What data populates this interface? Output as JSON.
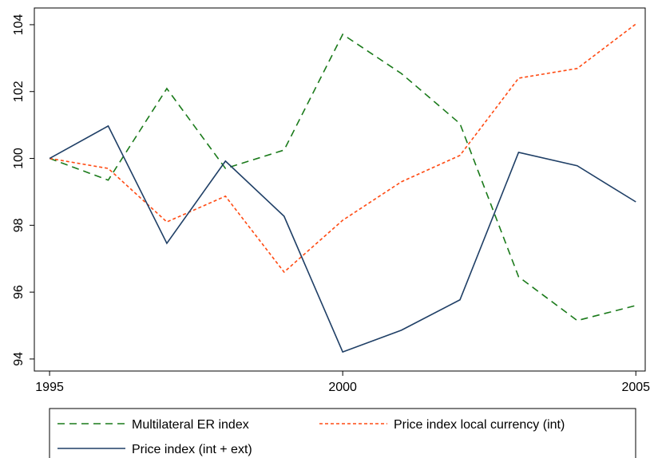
{
  "chart_data": {
    "type": "line",
    "x": [
      1995,
      1996,
      1997,
      1998,
      1999,
      2000,
      2001,
      2002,
      2003,
      2004,
      2005
    ],
    "series": [
      {
        "name": "Multilateral ER index",
        "color": "#1a7a1a",
        "line_style": "dash",
        "values": [
          100,
          99.35,
          102.09,
          99.7,
          100.25,
          103.71,
          102.54,
          101.04,
          96.46,
          95.15,
          95.6
        ]
      },
      {
        "name": "Price index local currency (int)",
        "color": "#ff4a12",
        "line_style": "dot",
        "values": [
          100,
          99.7,
          98.1,
          98.87,
          96.6,
          98.15,
          99.3,
          100.09,
          102.4,
          102.69,
          104.02
        ]
      },
      {
        "name": "Price index (int + ext)",
        "color": "#1f3f66",
        "line_style": "solid",
        "values": [
          100,
          100.97,
          97.46,
          99.92,
          98.27,
          94.21,
          94.86,
          95.77,
          100.18,
          99.78,
          98.7
        ]
      }
    ],
    "xlim": [
      1994.74,
      2005.16
    ],
    "xticks": [
      1995,
      2000,
      2005
    ],
    "ylim": [
      93.64,
      104.5
    ],
    "yticks": [
      94,
      96,
      98,
      100,
      102,
      104
    ],
    "grid": false,
    "legend": "bottom"
  }
}
